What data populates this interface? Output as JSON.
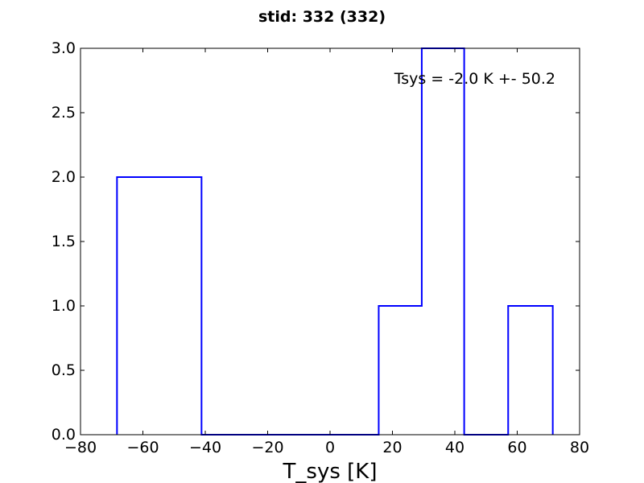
{
  "chart_data": {
    "type": "bar",
    "style": "step-histogram",
    "title": "stid: 332 (332)",
    "xlabel": "T_sys [K]",
    "ylabel": "",
    "xlim": [
      -80,
      80
    ],
    "ylim": [
      0,
      3.0
    ],
    "xticks": [
      -80,
      -60,
      -40,
      -20,
      0,
      20,
      40,
      60,
      80
    ],
    "xtick_labels": [
      "−80",
      "−60",
      "−40",
      "−20",
      "0",
      "20",
      "40",
      "60",
      "80"
    ],
    "yticks": [
      0.0,
      0.5,
      1.0,
      1.5,
      2.0,
      2.5,
      3.0
    ],
    "ytick_labels": [
      "0.0",
      "0.5",
      "1.0",
      "1.5",
      "2.0",
      "2.5",
      "3.0"
    ],
    "bin_edges": [
      -68.3,
      -54.8,
      -41.2,
      -27.7,
      -14.2,
      -0.7,
      15.6,
      29.4,
      43.0,
      57.1,
      71.4
    ],
    "counts": [
      2,
      2,
      0,
      0,
      0,
      0,
      1,
      3,
      0,
      1
    ],
    "annotation": "Tsys = -2.0 K +- 50.2",
    "color": "#0000ff",
    "grid": false
  }
}
